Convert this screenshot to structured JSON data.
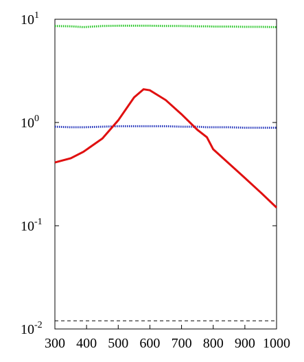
{
  "chart_data": {
    "type": "line",
    "log_y": true,
    "x": [
      300,
      350,
      390,
      450,
      500,
      550,
      580,
      600,
      650,
      700,
      750,
      780,
      800,
      850,
      900,
      950,
      1000
    ],
    "series": [
      {
        "color": "#22c422",
        "style": "dotted",
        "values": [
          8.6,
          8.55,
          8.4,
          8.6,
          8.65,
          8.65,
          8.65,
          8.65,
          8.6,
          8.6,
          8.55,
          8.55,
          8.5,
          8.5,
          8.45,
          8.45,
          8.4
        ]
      },
      {
        "color": "#2233bb",
        "style": "dotted",
        "values": [
          0.91,
          0.9,
          0.9,
          0.91,
          0.92,
          0.92,
          0.92,
          0.92,
          0.92,
          0.91,
          0.91,
          0.9,
          0.9,
          0.9,
          0.89,
          0.89,
          0.89
        ]
      },
      {
        "color": "#e01010",
        "style": "solid",
        "values": [
          0.41,
          0.45,
          0.52,
          0.7,
          1.05,
          1.75,
          2.1,
          2.05,
          1.65,
          1.2,
          0.85,
          0.72,
          0.55,
          0.4,
          0.29,
          0.21,
          0.15
        ]
      },
      {
        "color": "#000000",
        "style": "dashed",
        "values": [
          0.012,
          0.012,
          0.012,
          0.012,
          0.012,
          0.012,
          0.012,
          0.012,
          0.012,
          0.012,
          0.012,
          0.012,
          0.012,
          0.012,
          0.012,
          0.012,
          0.012
        ]
      }
    ],
    "xlim": [
      300,
      1000
    ],
    "xticks": [
      300,
      400,
      500,
      600,
      700,
      800,
      900,
      1000
    ],
    "ylim": [
      0.01,
      10
    ],
    "yticks": [
      {
        "value": 0.01,
        "label": "10",
        "exponent": "-2"
      },
      {
        "value": 0.1,
        "label": "10",
        "exponent": "-1"
      },
      {
        "value": 1,
        "label": "10",
        "exponent": "0"
      },
      {
        "value": 10,
        "label": "10",
        "exponent": "1"
      }
    ]
  }
}
